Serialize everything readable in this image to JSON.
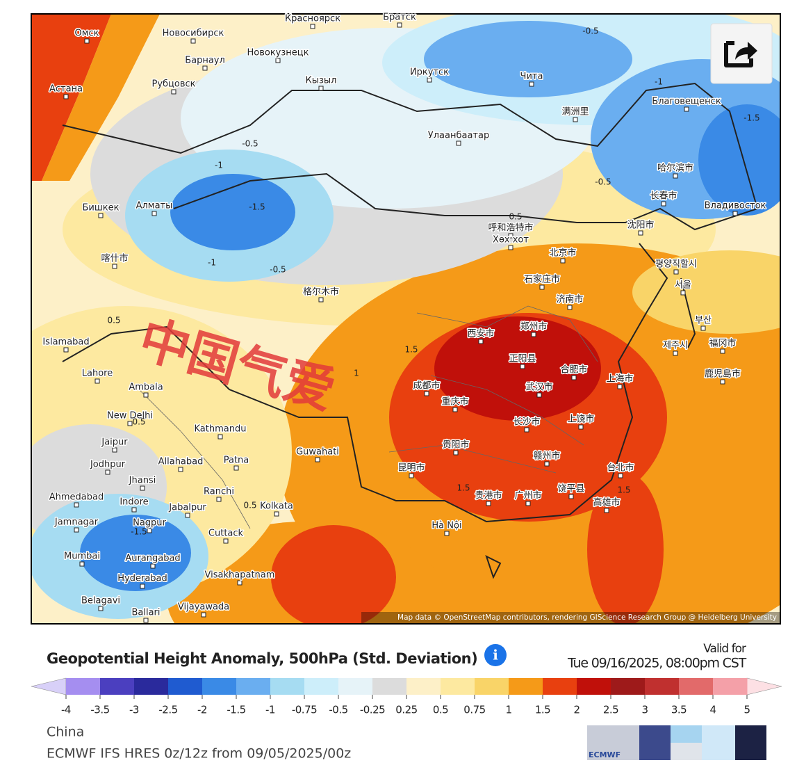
{
  "map": {
    "cities": [
      "Омск",
      "Новосибирск",
      "Барнаул",
      "Новокузнецк",
      "Красноярск",
      "Братск",
      "Астана",
      "Рубцовск",
      "Кызыл",
      "Иркутск",
      "Чита",
      "Благовещенск",
      "满洲里",
      "Улаанбаатар",
      "哈尔滨市",
      "长春市",
      "Владивосток",
      "Бишкек",
      "Алматы",
      "呼和浩特市",
      "Хөх хот",
      "沈阳市",
      "北京市",
      "평양직할시",
      "石家庄市",
      "서울",
      "济南市",
      "喀什市",
      "格尔木市",
      "Islamabad",
      "西安市",
      "郑州市",
      "正阳县",
      "合肥市",
      "上海市",
      "武汉市",
      "成都市",
      "重庆市",
      "长沙市",
      "上饶市",
      "Lahore",
      "Ambala",
      "New Delhi",
      "Kathmandu",
      "Jaipur",
      "Guwahati",
      "贵阳市",
      "昆明市",
      "赣州市",
      "台北市",
      "Jodhpur",
      "Allahabad",
      "Patna",
      "Jhansi",
      "Indore",
      "Ranchi",
      "Ahmedabad",
      "Jabalpur",
      "Kolkata",
      "广州市",
      "贵港市",
      "饶平县",
      "高雄市",
      "Jamnagar",
      "Nagpur",
      "Hà Nội",
      "Cuttack",
      "Mumbai",
      "Aurangabad",
      "Hyderabad",
      "Visakhapatnam",
      "Belagavi",
      "Ballari",
      "Vijayawada",
      "제주시",
      "福冈市",
      "鹿児島市",
      "부산"
    ],
    "contour_labels": [
      "-0.5",
      "-1",
      "-1.5",
      "-0.5",
      "-1",
      "-1.5",
      "-1",
      "-0.5",
      "-0.5",
      "0.5",
      "0.5",
      "1.5",
      "1",
      "1.5",
      "0.5",
      "-1.5",
      "1.5",
      "0.5"
    ],
    "watermark": "中国气爱",
    "attribution": "Map data © OpenStreetMap contributors, rendering GIScience Research Group @ Heidelberg University"
  },
  "legend": {
    "title": "Geopotential Height Anomaly, 500hPa (Std. Deviation)",
    "valid_for": "Valid for",
    "valid_time": "Tue 09/16/2025, 08:00pm CST",
    "ticks": [
      -4,
      -3.5,
      -3,
      -2.5,
      -2,
      -1.5,
      -1,
      -0.75,
      -0.5,
      -0.25,
      0.25,
      0.5,
      0.75,
      1,
      1.5,
      2,
      2.5,
      3,
      3.5,
      4,
      5
    ],
    "colors": [
      "#a58ef0",
      "#4b3fbf",
      "#2a2a9c",
      "#1f5bd0",
      "#3a8ae6",
      "#6aaef0",
      "#a6dcf2",
      "#cdeefa",
      "#e6f3f8",
      "#dcdcdc",
      "#fdf0c8",
      "#fde9a0",
      "#f9d468",
      "#f59a18",
      "#e8400f",
      "#c0100a",
      "#9e1a1a",
      "#c0302f",
      "#e26a6a",
      "#f4a0a8"
    ],
    "under_color": "#d8d0f8",
    "over_color": "#fde0e4"
  },
  "footer": {
    "region": "China",
    "model": "ECMWF IFS HRES 0z/12z from 09/05/2025/00z",
    "logo": "ECMWF"
  }
}
